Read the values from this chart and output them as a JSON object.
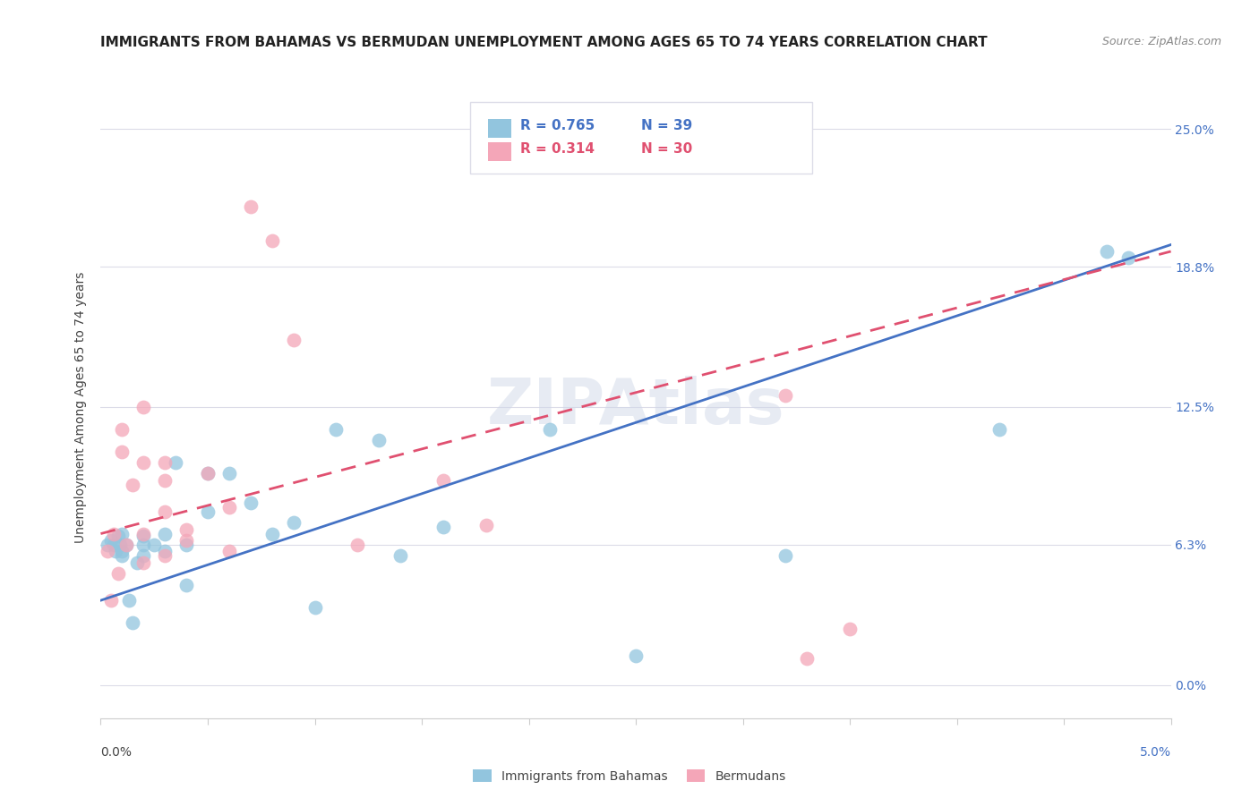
{
  "title": "IMMIGRANTS FROM BAHAMAS VS BERMUDAN UNEMPLOYMENT AMONG AGES 65 TO 74 YEARS CORRELATION CHART",
  "source": "Source: ZipAtlas.com",
  "ylabel": "Unemployment Among Ages 65 to 74 years",
  "y_tick_vals": [
    0.0,
    0.063,
    0.125,
    0.188,
    0.25
  ],
  "y_tick_labels": [
    "0.0%",
    "6.3%",
    "12.5%",
    "18.8%",
    "25.0%"
  ],
  "legend_label1": "Immigrants from Bahamas",
  "legend_label2": "Bermudans",
  "legend_r1": "R = 0.765",
  "legend_n1": "N = 39",
  "legend_r2": "R = 0.314",
  "legend_n2": "N = 30",
  "color_blue": "#92C5DE",
  "color_pink": "#F4A6B8",
  "color_blue_line": "#4472C4",
  "color_pink_line": "#E05070",
  "watermark": "ZIPAtlas",
  "xlim": [
    0.0,
    0.05
  ],
  "ylim": [
    -0.015,
    0.265
  ],
  "blue_scatter_x": [
    0.0003,
    0.0005,
    0.0006,
    0.0007,
    0.0008,
    0.0009,
    0.001,
    0.001,
    0.001,
    0.0012,
    0.0013,
    0.0015,
    0.0017,
    0.002,
    0.002,
    0.002,
    0.0025,
    0.003,
    0.003,
    0.0035,
    0.004,
    0.004,
    0.005,
    0.005,
    0.006,
    0.007,
    0.008,
    0.009,
    0.01,
    0.011,
    0.013,
    0.014,
    0.016,
    0.021,
    0.025,
    0.032,
    0.042,
    0.047,
    0.048
  ],
  "blue_scatter_y": [
    0.063,
    0.065,
    0.063,
    0.06,
    0.067,
    0.063,
    0.06,
    0.068,
    0.058,
    0.063,
    0.038,
    0.028,
    0.055,
    0.063,
    0.067,
    0.058,
    0.063,
    0.06,
    0.068,
    0.1,
    0.063,
    0.045,
    0.095,
    0.078,
    0.095,
    0.082,
    0.068,
    0.073,
    0.035,
    0.115,
    0.11,
    0.058,
    0.071,
    0.115,
    0.013,
    0.058,
    0.115,
    0.195,
    0.192
  ],
  "pink_scatter_x": [
    0.0003,
    0.0005,
    0.0006,
    0.0008,
    0.001,
    0.001,
    0.0012,
    0.0015,
    0.002,
    0.002,
    0.002,
    0.002,
    0.003,
    0.003,
    0.003,
    0.003,
    0.004,
    0.004,
    0.005,
    0.006,
    0.006,
    0.007,
    0.008,
    0.009,
    0.012,
    0.016,
    0.018,
    0.032,
    0.033,
    0.035
  ],
  "pink_scatter_y": [
    0.06,
    0.038,
    0.068,
    0.05,
    0.115,
    0.105,
    0.063,
    0.09,
    0.055,
    0.068,
    0.125,
    0.1,
    0.078,
    0.092,
    0.058,
    0.1,
    0.065,
    0.07,
    0.095,
    0.08,
    0.06,
    0.215,
    0.2,
    0.155,
    0.063,
    0.092,
    0.072,
    0.13,
    0.012,
    0.025
  ],
  "blue_line_x": [
    0.0,
    0.05
  ],
  "blue_line_y": [
    0.038,
    0.198
  ],
  "pink_line_x": [
    0.0,
    0.05
  ],
  "pink_line_y": [
    0.068,
    0.195
  ],
  "grid_color": "#DCDCE8",
  "background_color": "#ffffff",
  "title_fontsize": 11,
  "source_fontsize": 9,
  "axis_tick_fontsize": 10
}
